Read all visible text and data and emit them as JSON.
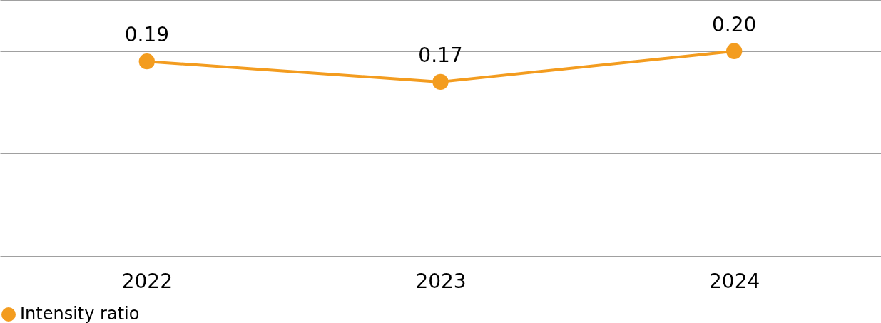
{
  "chart_data": {
    "type": "line",
    "categories": [
      "2022",
      "2023",
      "2024"
    ],
    "series": [
      {
        "name": "Intensity ratio",
        "color": "#f39c1f",
        "values": [
          0.19,
          0.17,
          0.2
        ],
        "value_labels": [
          "0.19",
          "0.17",
          "0.20"
        ]
      }
    ],
    "ylim": [
      0,
      0.25
    ],
    "yticks": [
      {
        "value": 0,
        "label": null
      },
      {
        "value": 0.05,
        "label": null
      },
      {
        "value": 0.1,
        "label": null
      },
      {
        "value": 0.15,
        "label": null
      },
      {
        "value": 0.2,
        "label": null
      },
      {
        "value": 0.25,
        "label": null
      }
    ],
    "tick_labels": "x",
    "grid": "y",
    "legend": "bottom",
    "marker": "circle",
    "line_style": "solid"
  }
}
